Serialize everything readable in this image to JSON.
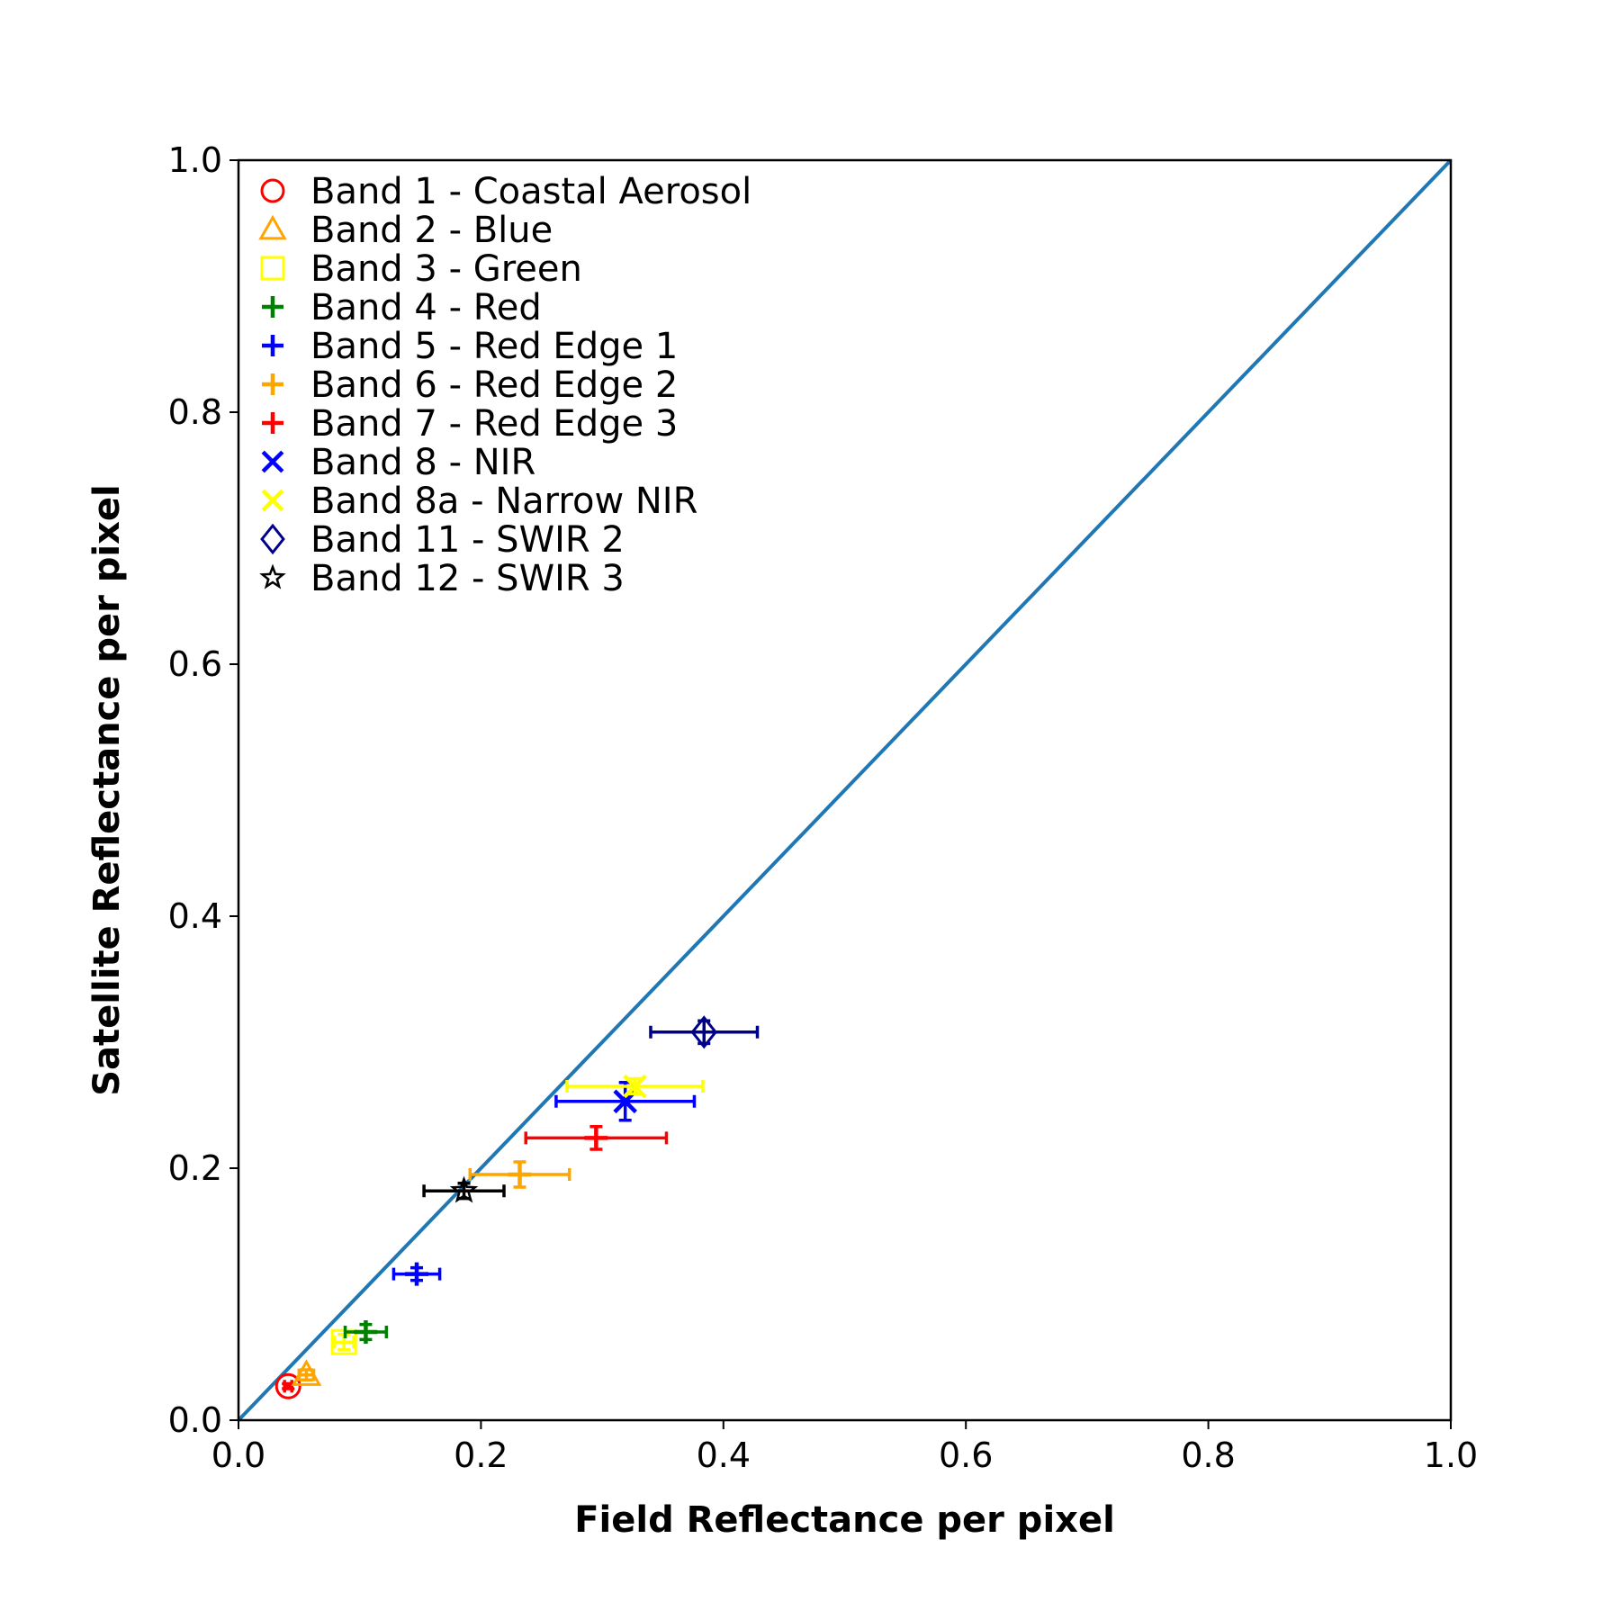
{
  "chart_data": {
    "type": "scatter",
    "title": "",
    "xlabel": "Field Reflectance per pixel",
    "ylabel": "Satellite Reflectance per pixel",
    "xlim": [
      0.0,
      1.0
    ],
    "ylim": [
      0.0,
      1.0
    ],
    "xticks": [
      "0.0",
      "0.2",
      "0.4",
      "0.6",
      "0.8",
      "1.0"
    ],
    "yticks": [
      "0.0",
      "0.2",
      "0.4",
      "0.6",
      "0.8",
      "1.0"
    ],
    "grid": false,
    "legend_position": "top-left",
    "reference_line": {
      "x": [
        0.0,
        1.0
      ],
      "y": [
        0.0,
        1.0
      ],
      "color": "#1f77b4"
    },
    "series": [
      {
        "name": "Band 1 - Coastal Aerosol",
        "marker": "circle",
        "color": "#ff0000",
        "x": 0.041,
        "y": 0.027,
        "xerr": 0.003,
        "yerr": 0.002
      },
      {
        "name": "Band 2 - Blue",
        "marker": "triangle",
        "color": "#ffa500",
        "x": 0.056,
        "y": 0.036,
        "xerr": 0.006,
        "yerr": 0.004
      },
      {
        "name": "Band 3 - Green",
        "marker": "square",
        "color": "#ffff00",
        "x": 0.087,
        "y": 0.062,
        "xerr": 0.008,
        "yerr": 0.006
      },
      {
        "name": "Band 4 - Red",
        "marker": "plus",
        "color": "#008000",
        "x": 0.105,
        "y": 0.07,
        "xerr": 0.017,
        "yerr": 0.006
      },
      {
        "name": "Band 5 - Red Edge 1",
        "marker": "plus",
        "color": "#0000ff",
        "x": 0.147,
        "y": 0.116,
        "xerr": 0.019,
        "yerr": 0.005
      },
      {
        "name": "Band 6 - Red Edge 2",
        "marker": "plus",
        "color": "#ffa500",
        "x": 0.232,
        "y": 0.195,
        "xerr": 0.041,
        "yerr": 0.01
      },
      {
        "name": "Band 7 - Red Edge 3",
        "marker": "plus",
        "color": "#ff0000",
        "x": 0.295,
        "y": 0.224,
        "xerr": 0.058,
        "yerr": 0.009
      },
      {
        "name": "Band 8 - NIR",
        "marker": "x",
        "color": "#0000ff",
        "x": 0.319,
        "y": 0.253,
        "xerr": 0.057,
        "yerr": 0.015
      },
      {
        "name": "Band 8a - Narrow NIR",
        "marker": "x",
        "color": "#ffff00",
        "x": 0.327,
        "y": 0.265,
        "xerr": 0.056,
        "yerr": 0.006
      },
      {
        "name": "Band 11 - SWIR 2",
        "marker": "diamond",
        "color": "#00008b",
        "x": 0.384,
        "y": 0.308,
        "xerr": 0.044,
        "yerr": 0.009
      },
      {
        "name": "Band 12 - SWIR 3",
        "marker": "star",
        "color": "#000000",
        "x": 0.186,
        "y": 0.182,
        "xerr": 0.033,
        "yerr": 0.006
      }
    ]
  }
}
